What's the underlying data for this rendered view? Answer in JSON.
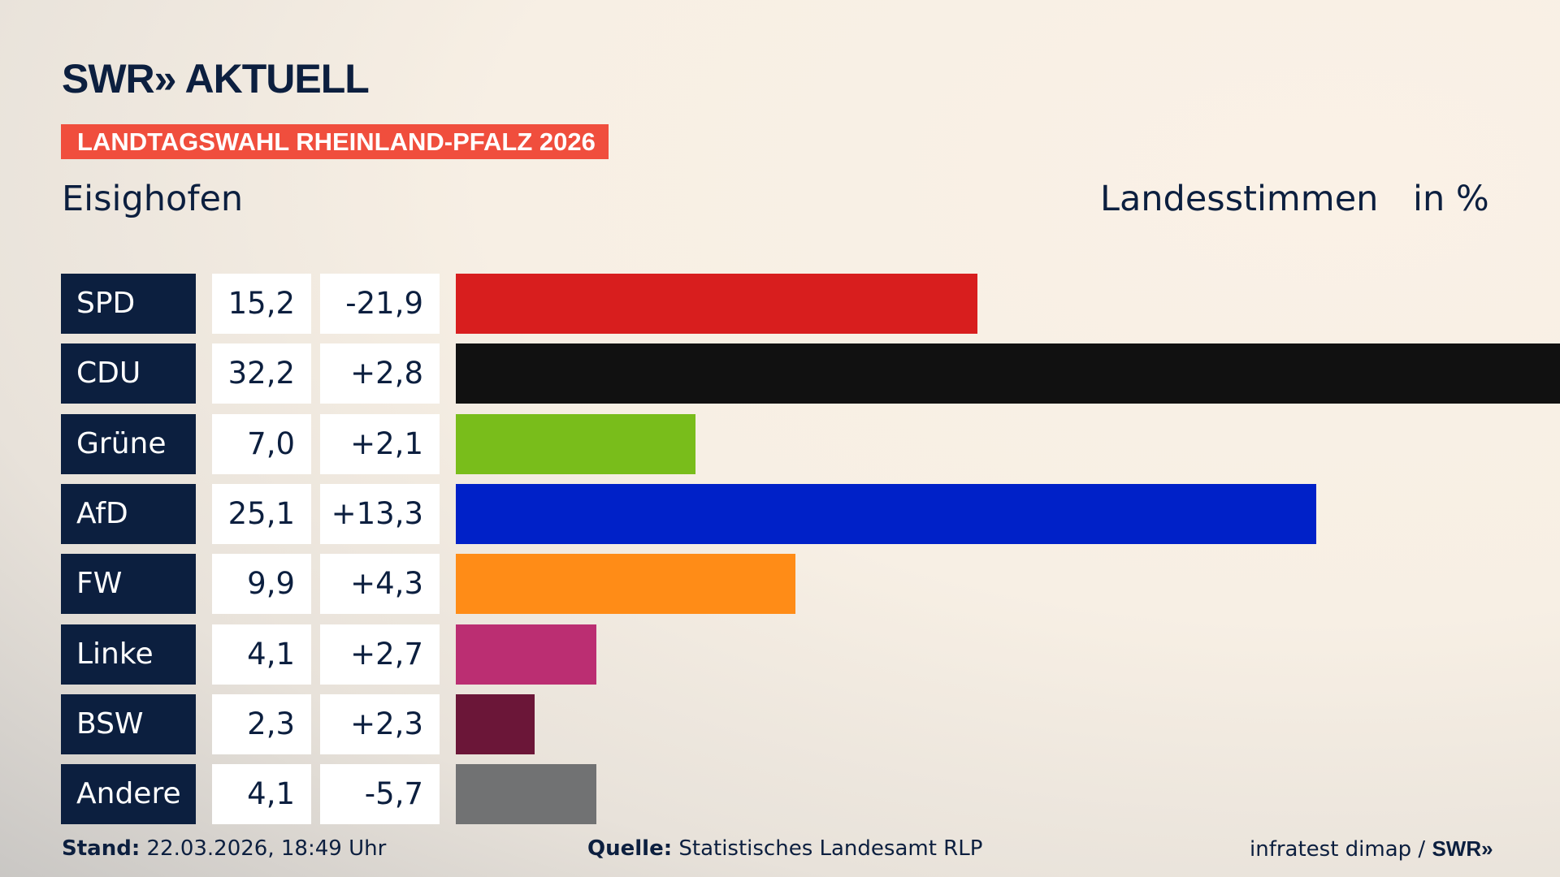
{
  "header": {
    "logo": "SWR» AKTUELL",
    "banner": "LANDTAGSWAHL RHEINLAND-PFALZ 2026",
    "place": "Eisighofen",
    "measure": "Landesstimmen",
    "unit": "in %"
  },
  "chart_data": {
    "type": "bar",
    "orientation": "horizontal",
    "categories": [
      "SPD",
      "CDU",
      "Grüne",
      "AfD",
      "FW",
      "Linke",
      "BSW",
      "Andere"
    ],
    "values": [
      15.2,
      32.2,
      7.0,
      25.1,
      9.9,
      4.1,
      2.3,
      4.1
    ],
    "value_labels": [
      "15,2",
      "32,2",
      "7,0",
      "25,1",
      "9,9",
      "4,1",
      "2,3",
      "4,1"
    ],
    "diff_labels": [
      "-21,9",
      "+2,8",
      "+2,1",
      "+13,3",
      "+4,3",
      "+2,7",
      "+2,3",
      "-5,7"
    ],
    "colors": [
      "#d81e1e",
      "#111111",
      "#79bd1b",
      "#0021c8",
      "#ff8c17",
      "#bb2e72",
      "#6b1638",
      "#717273"
    ],
    "xlim": [
      0,
      32.2
    ],
    "grid": false
  },
  "footer": {
    "stand_label": "Stand:",
    "stand_value": "22.03.2026, 18:49 Uhr",
    "source_label": "Quelle:",
    "source_value": "Statistisches Landesamt RLP",
    "credit": "infratest dimap / ",
    "credit_logo": "SWR»"
  }
}
